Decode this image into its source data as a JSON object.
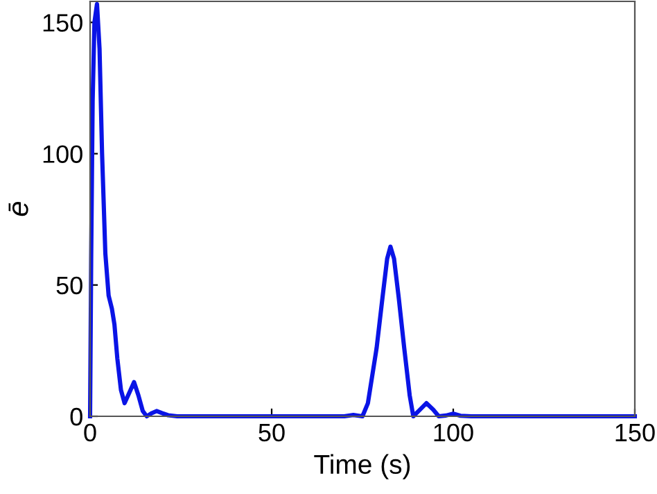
{
  "chart_data": {
    "type": "line",
    "xlabel": "Time (s)",
    "ylabel": "ē",
    "xlim": [
      0,
      150
    ],
    "ylim": [
      0,
      158
    ],
    "xticks": [
      0,
      50,
      100,
      150
    ],
    "yticks": [
      0,
      50,
      100,
      150
    ],
    "grid": false,
    "legend": false,
    "marker": "none",
    "line_style": "solid",
    "series": [
      {
        "color": "#0a14e6",
        "x": [
          0,
          0.3,
          0.7,
          1.2,
          1.9,
          2.6,
          3.3,
          4.2,
          5.1,
          6.0,
          6.7,
          7.5,
          8.5,
          9.5,
          10.8,
          12.1,
          13.3,
          14.5,
          15.6,
          17.0,
          18.3,
          19.8,
          21.5,
          24,
          30,
          40,
          50,
          60,
          70,
          72.5,
          74,
          75,
          76.5,
          78.9,
          80.5,
          81.8,
          82.7,
          83.7,
          85,
          86.5,
          88,
          89,
          90.8,
          92.6,
          94.5,
          96,
          98,
          100,
          102,
          105,
          120,
          140,
          150
        ],
        "values": [
          0,
          60,
          120,
          150,
          157,
          140,
          100,
          62,
          46,
          41,
          35,
          22,
          10,
          5,
          9,
          13,
          8,
          2,
          0,
          1.2,
          2,
          1.2,
          0.4,
          0,
          0,
          0,
          0,
          0,
          0,
          0.5,
          0.2,
          0,
          5,
          26,
          45,
          60,
          64.6,
          60,
          45,
          26,
          8,
          0,
          2.5,
          5,
          2.5,
          0,
          0.3,
          1,
          0.2,
          0,
          0,
          0,
          0
        ]
      }
    ]
  }
}
